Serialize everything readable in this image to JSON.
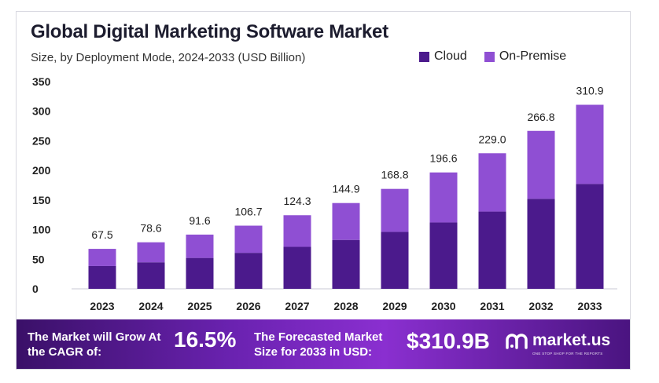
{
  "title": "Global Digital Marketing Software Market",
  "subtitle": "Size, by Deployment Mode, 2024-2033 (USD Billion)",
  "legend": [
    {
      "label": "Cloud",
      "color": "#4b1a8c"
    },
    {
      "label": "On-Premise",
      "color": "#8f4fd3"
    }
  ],
  "chart_data": {
    "type": "bar",
    "stacked": true,
    "title": "Global Digital Marketing Software Market",
    "subtitle": "Size, by Deployment Mode, 2024-2033 (USD Billion)",
    "categories": [
      "2023",
      "2024",
      "2025",
      "2026",
      "2027",
      "2028",
      "2029",
      "2030",
      "2031",
      "2032",
      "2033"
    ],
    "series": [
      {
        "name": "Cloud",
        "color": "#4b1a8c",
        "values": [
          38.5,
          44.8,
          52.2,
          60.8,
          70.9,
          82.6,
          96.2,
          112.1,
          130.5,
          152.1,
          177.2
        ]
      },
      {
        "name": "On-Premise",
        "color": "#8f4fd3",
        "values": [
          29.0,
          33.8,
          39.4,
          45.9,
          53.4,
          62.3,
          72.6,
          84.5,
          98.5,
          114.7,
          133.7
        ]
      }
    ],
    "totals": [
      "67.5",
      "78.6",
      "91.6",
      "106.7",
      "124.3",
      "144.9",
      "168.8",
      "196.6",
      "229.0",
      "266.8",
      "310.9"
    ],
    "yticks": [
      0,
      50,
      100,
      150,
      200,
      250,
      300,
      350
    ],
    "ylim": [
      0,
      350
    ],
    "xlabel": "",
    "ylabel": "",
    "grid": false,
    "legend_position": "top-right"
  },
  "footer": {
    "grow_text": "The Market will Grow At the CAGR of:",
    "cagr": "16.5%",
    "forecast_text": "The Forecasted Market Size for 2033 in USD:",
    "market_size": "$310.9B",
    "logo_name": "market.us",
    "logo_tagline": "ONE STOP SHOP FOR THE REPORTS"
  }
}
